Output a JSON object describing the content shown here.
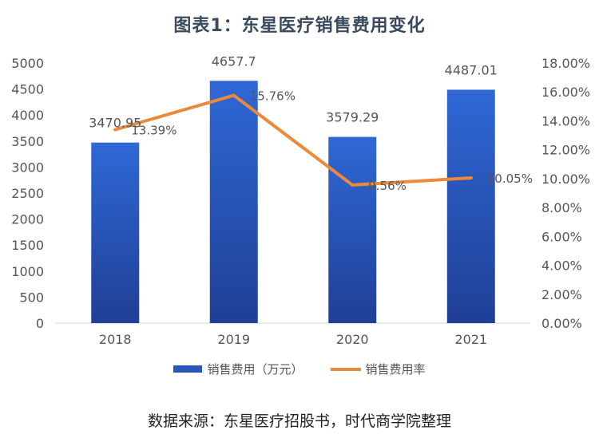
{
  "chart_data": {
    "type": "bar",
    "title": "图表1：东星医疗销售费用变化",
    "categories": [
      "2018",
      "2019",
      "2020",
      "2021"
    ],
    "series": [
      {
        "name": "销售费用（万元）",
        "type": "bar",
        "axis": "left",
        "values": [
          3470.95,
          4657.7,
          3579.29,
          4487.01
        ],
        "labels": [
          "3470.95",
          "4657.7",
          "3579.29",
          "4487.01"
        ],
        "color": "#2b55b8"
      },
      {
        "name": "销售费用率",
        "type": "line",
        "axis": "right",
        "values": [
          13.39,
          15.76,
          9.56,
          10.05
        ],
        "labels": [
          "13.39%",
          "15.76%",
          "9.56%",
          "10.05%"
        ],
        "color": "#ea8a3a"
      }
    ],
    "y_left": {
      "ylim": [
        0,
        5000
      ],
      "ticks": [
        "0",
        "500",
        "1000",
        "1500",
        "2000",
        "2500",
        "3000",
        "3500",
        "4000",
        "4500",
        "5000"
      ]
    },
    "y_right": {
      "ylim": [
        0,
        18
      ],
      "ticks": [
        "0.00%",
        "2.00%",
        "4.00%",
        "6.00%",
        "8.00%",
        "10.00%",
        "12.00%",
        "14.00%",
        "16.00%",
        "18.00%"
      ]
    },
    "grid": false,
    "legend_position": "bottom"
  },
  "source": "数据来源：东星医疗招股书，时代商学院整理"
}
